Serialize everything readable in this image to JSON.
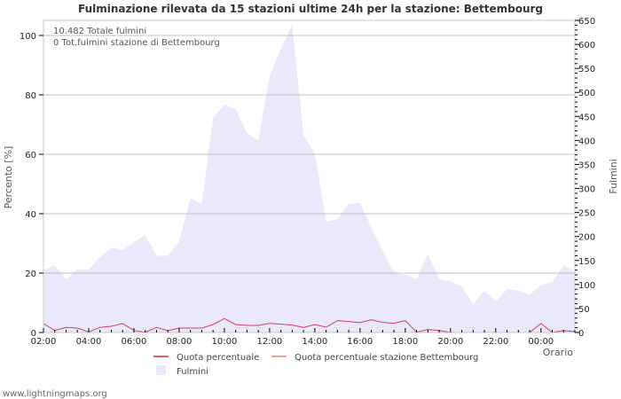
{
  "title": "Fulminazione rilevata da 15 stazioni ultime 24h per la stazione: Bettembourg",
  "info": {
    "total": "10.482 Totale fulmini",
    "station_total": "0 Tot.fulmini stazione di Bettembourg"
  },
  "axes": {
    "left_label": "Percento   [%]",
    "right_label": "Fulmini",
    "x_label": "Orario",
    "left_ticks": [
      0,
      20,
      40,
      60,
      80,
      100
    ],
    "right_ticks": [
      0,
      50,
      100,
      150,
      200,
      250,
      300,
      350,
      400,
      450,
      500,
      550,
      600,
      650
    ],
    "x_ticks": [
      "02:00",
      "04:00",
      "06:00",
      "08:00",
      "10:00",
      "12:00",
      "14:00",
      "16:00",
      "18:00",
      "20:00",
      "22:00",
      "00:00"
    ]
  },
  "legend": {
    "quota": "Quota percentuale",
    "quota_station": "Quota percentuale stazione Bettembourg",
    "fulmini": "Fulmini"
  },
  "colors": {
    "area": "#e9e9fb",
    "quota_line": "#d04060",
    "quota_legend": "#e06060",
    "quota_station_legend": "#f0a0a0",
    "grid": "#c0c0c0"
  },
  "footer": "www.lightningmaps.org",
  "chart_data": {
    "type": "area",
    "title": "Fulminazione rilevata da 15 stazioni ultime 24h per la stazione: Bettembourg",
    "xlabel": "Orario",
    "ylabel": "Percento [%]",
    "y2label": "Fulmini",
    "ylim": [
      0,
      100
    ],
    "y2lim": [
      0,
      650
    ],
    "grid": true,
    "legend_position": "bottom",
    "x": [
      "02:00",
      "02:30",
      "03:00",
      "03:30",
      "04:00",
      "04:30",
      "05:00",
      "05:30",
      "06:00",
      "06:30",
      "07:00",
      "07:30",
      "08:00",
      "08:30",
      "09:00",
      "09:30",
      "10:00",
      "10:30",
      "11:00",
      "11:30",
      "12:00",
      "12:30",
      "13:00",
      "13:30",
      "14:00",
      "14:30",
      "15:00",
      "15:30",
      "16:00",
      "16:30",
      "17:00",
      "17:30",
      "18:00",
      "18:30",
      "19:00",
      "19:30",
      "20:00",
      "20:30",
      "21:00",
      "21:30",
      "22:00",
      "22:30",
      "23:00",
      "23:30",
      "00:00",
      "00:30",
      "01:00",
      "01:30"
    ],
    "series": [
      {
        "name": "Fulmini",
        "axis": "right",
        "type": "area",
        "values": [
          129,
          140,
          111,
          131,
          131,
          157,
          177,
          172,
          188,
          203,
          160,
          160,
          190,
          280,
          268,
          447,
          474,
          465,
          415,
          400,
          535,
          591,
          641,
          411,
          373,
          231,
          236,
          268,
          270,
          218,
          170,
          126,
          120,
          111,
          163,
          111,
          107,
          96,
          59,
          87,
          65,
          90,
          87,
          79,
          98,
          105,
          140,
          126
        ]
      },
      {
        "name": "Quota percentuale",
        "axis": "left",
        "type": "line",
        "values": [
          3.0,
          0.7,
          1.7,
          1.5,
          0.2,
          1.7,
          2.1,
          3.0,
          0.7,
          0.1,
          1.7,
          0.6,
          1.5,
          1.5,
          1.5,
          2.7,
          4.7,
          2.7,
          2.4,
          2.4,
          3.1,
          2.8,
          2.5,
          1.7,
          2.7,
          1.8,
          4.0,
          3.7,
          3.3,
          4.3,
          3.4,
          3.1,
          4.0,
          0.1,
          1.0,
          0.7,
          0,
          0,
          0,
          0,
          0,
          0,
          0,
          0,
          3.0,
          0,
          0.7,
          0.3
        ]
      },
      {
        "name": "Quota percentuale stazione Bettembourg",
        "axis": "left",
        "type": "line",
        "values": []
      }
    ]
  }
}
